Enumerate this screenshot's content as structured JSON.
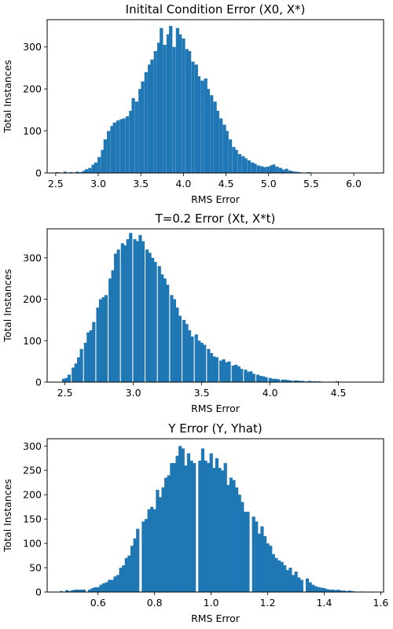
{
  "chart_data": [
    {
      "type": "bar",
      "title": "Initital Condition Error (X0, X*)",
      "xlabel": "RMS Error",
      "ylabel": "Total Instances",
      "xlim": [
        2.4,
        6.35
      ],
      "ylim": [
        0,
        365
      ],
      "xticks": [
        2.5,
        3.0,
        3.5,
        4.0,
        4.5,
        5.0,
        5.5,
        6.0
      ],
      "xtick_labels": [
        "2.5",
        "3.0",
        "3.5",
        "4.0",
        "4.5",
        "5.0",
        "5.5",
        "6.0"
      ],
      "yticks": [
        0,
        100,
        200,
        300
      ],
      "ytick_labels": [
        "0",
        "100",
        "200",
        "300"
      ],
      "bin_width": 0.0366,
      "x": [
        2.52,
        2.57,
        2.61,
        2.64,
        2.68,
        2.72,
        2.75,
        2.79,
        2.83,
        2.86,
        2.9,
        2.94,
        2.97,
        3.01,
        3.05,
        3.08,
        3.12,
        3.16,
        3.19,
        3.23,
        3.27,
        3.3,
        3.34,
        3.38,
        3.41,
        3.45,
        3.49,
        3.52,
        3.56,
        3.6,
        3.63,
        3.67,
        3.71,
        3.74,
        3.78,
        3.82,
        3.85,
        3.89,
        3.93,
        3.96,
        4.0,
        4.04,
        4.07,
        4.11,
        4.15,
        4.18,
        4.22,
        4.26,
        4.29,
        4.33,
        4.37,
        4.4,
        4.44,
        4.48,
        4.51,
        4.55,
        4.59,
        4.62,
        4.66,
        4.7,
        4.73,
        4.77,
        4.81,
        4.84,
        4.88,
        4.92,
        4.95,
        4.99,
        5.03,
        5.06,
        5.1,
        5.14,
        5.17,
        5.21,
        5.25,
        5.28,
        5.32,
        5.36,
        5.39,
        5.43,
        5.47,
        5.5,
        5.54,
        5.58,
        5.61,
        5.65,
        5.69,
        5.72,
        5.76,
        5.8,
        5.83,
        5.87,
        5.91,
        5.94,
        5.98,
        6.02,
        6.05,
        6.09,
        6.13,
        6.17
      ],
      "values": [
        2,
        0,
        3,
        1,
        2,
        0,
        3,
        2,
        5,
        9,
        12,
        20,
        25,
        38,
        55,
        80,
        100,
        112,
        120,
        125,
        128,
        130,
        135,
        148,
        178,
        170,
        200,
        218,
        240,
        258,
        270,
        290,
        310,
        345,
        305,
        330,
        350,
        300,
        345,
        330,
        320,
        295,
        290,
        265,
        258,
        230,
        220,
        225,
        200,
        185,
        170,
        148,
        130,
        115,
        100,
        80,
        62,
        55,
        45,
        40,
        35,
        30,
        25,
        22,
        18,
        16,
        14,
        15,
        18,
        20,
        15,
        12,
        8,
        10,
        6,
        4,
        3,
        2,
        1,
        1,
        2,
        1,
        0,
        1,
        0,
        0,
        1,
        0,
        0,
        0,
        0,
        1,
        0,
        0,
        0,
        0,
        0,
        0,
        0,
        1
      ]
    },
    {
      "type": "bar",
      "title": "T=0.2 Error (Xt, X*t)",
      "xlabel": "RMS Error",
      "ylabel": "Total Instances",
      "xlim": [
        2.37,
        4.83
      ],
      "ylim": [
        0,
        370
      ],
      "xticks": [
        2.5,
        3.0,
        3.5,
        4.0,
        4.5
      ],
      "xtick_labels": [
        "2.5",
        "3.0",
        "3.5",
        "4.0",
        "4.5"
      ],
      "yticks": [
        0,
        100,
        200,
        300
      ],
      "ytick_labels": [
        "0",
        "100",
        "200",
        "300"
      ],
      "bin_width": 0.0225,
      "x": [
        2.49,
        2.51,
        2.53,
        2.56,
        2.58,
        2.6,
        2.62,
        2.65,
        2.67,
        2.69,
        2.71,
        2.74,
        2.76,
        2.78,
        2.8,
        2.83,
        2.85,
        2.87,
        2.89,
        2.92,
        2.94,
        2.96,
        2.98,
        3.01,
        3.03,
        3.05,
        3.07,
        3.1,
        3.12,
        3.14,
        3.16,
        3.19,
        3.21,
        3.23,
        3.25,
        3.28,
        3.3,
        3.32,
        3.34,
        3.37,
        3.39,
        3.41,
        3.43,
        3.46,
        3.48,
        3.5,
        3.52,
        3.55,
        3.57,
        3.59,
        3.61,
        3.64,
        3.66,
        3.68,
        3.7,
        3.73,
        3.75,
        3.77,
        3.79,
        3.82,
        3.84,
        3.86,
        3.88,
        3.91,
        3.93,
        3.95,
        3.97,
        4.0,
        4.02,
        4.04,
        4.06,
        4.09,
        4.11,
        4.13,
        4.15,
        4.18,
        4.2,
        4.22,
        4.24,
        4.27,
        4.29,
        4.31,
        4.33,
        4.36,
        4.38,
        4.4,
        4.42,
        4.45,
        4.47,
        4.49,
        4.51,
        4.54,
        4.56,
        4.58,
        4.6,
        4.63,
        4.65,
        4.67,
        4.7,
        4.72
      ],
      "values": [
        8,
        10,
        18,
        35,
        45,
        60,
        80,
        95,
        120,
        125,
        145,
        180,
        200,
        205,
        210,
        250,
        270,
        310,
        320,
        335,
        330,
        345,
        360,
        345,
        340,
        355,
        340,
        320,
        312,
        300,
        290,
        280,
        260,
        250,
        235,
        210,
        200,
        180,
        160,
        150,
        140,
        125,
        110,
        115,
        100,
        95,
        90,
        80,
        70,
        62,
        60,
        52,
        55,
        48,
        50,
        40,
        42,
        38,
        32,
        30,
        25,
        26,
        20,
        18,
        15,
        14,
        12,
        10,
        8,
        8,
        7,
        6,
        6,
        5,
        4,
        4,
        4,
        3,
        3,
        2,
        3,
        2,
        2,
        2,
        1,
        1,
        1,
        1,
        1,
        2,
        1,
        1,
        1,
        0,
        1,
        1,
        0,
        0,
        1,
        1
      ]
    },
    {
      "type": "bar",
      "title": "Y Error (Y, Yhat)",
      "xlabel": "RMS Error",
      "ylabel": "Total Instances",
      "xlim": [
        0.42,
        1.61
      ],
      "ylim": [
        0,
        315
      ],
      "xticks": [
        0.6,
        0.8,
        1.0,
        1.2,
        1.4,
        1.6
      ],
      "xtick_labels": [
        "0.6",
        "0.8",
        "1.0",
        "1.2",
        "1.4",
        "1.6"
      ],
      "yticks": [
        0,
        50,
        100,
        150,
        200,
        250,
        300
      ],
      "ytick_labels": [
        "0",
        "50",
        "100",
        "150",
        "200",
        "250",
        "300"
      ],
      "bin_width": 0.0109,
      "x": [
        0.47,
        0.48,
        0.49,
        0.5,
        0.51,
        0.52,
        0.53,
        0.54,
        0.55,
        0.57,
        0.58,
        0.59,
        0.6,
        0.61,
        0.62,
        0.63,
        0.64,
        0.65,
        0.66,
        0.67,
        0.68,
        0.69,
        0.7,
        0.71,
        0.72,
        0.73,
        0.74,
        0.76,
        0.77,
        0.78,
        0.79,
        0.8,
        0.81,
        0.82,
        0.83,
        0.84,
        0.85,
        0.86,
        0.87,
        0.88,
        0.89,
        0.9,
        0.91,
        0.92,
        0.93,
        0.94,
        0.96,
        0.97,
        0.98,
        0.99,
        1.0,
        1.01,
        1.02,
        1.03,
        1.04,
        1.05,
        1.06,
        1.07,
        1.08,
        1.09,
        1.1,
        1.11,
        1.12,
        1.13,
        1.15,
        1.16,
        1.17,
        1.18,
        1.19,
        1.2,
        1.21,
        1.22,
        1.23,
        1.24,
        1.25,
        1.26,
        1.27,
        1.28,
        1.29,
        1.3,
        1.31,
        1.32,
        1.34,
        1.35,
        1.36,
        1.37,
        1.38,
        1.39,
        1.4,
        1.41,
        1.42,
        1.43,
        1.44,
        1.45,
        1.46,
        1.47,
        1.48,
        1.49,
        1.5,
        1.51,
        1.53,
        1.54
      ],
      "values": [
        2,
        0,
        4,
        2,
        4,
        5,
        5,
        5,
        5,
        5,
        8,
        10,
        10,
        15,
        18,
        20,
        25,
        25,
        32,
        35,
        50,
        55,
        70,
        75,
        95,
        110,
        130,
        145,
        150,
        170,
        175,
        170,
        210,
        195,
        215,
        235,
        240,
        265,
        265,
        280,
        300,
        295,
        260,
        285,
        270,
        265,
        270,
        295,
        270,
        265,
        285,
        255,
        275,
        255,
        250,
        265,
        220,
        235,
        230,
        215,
        200,
        185,
        165,
        165,
        155,
        145,
        120,
        135,
        115,
        100,
        95,
        78,
        70,
        65,
        62,
        55,
        45,
        50,
        35,
        42,
        30,
        25,
        28,
        20,
        15,
        12,
        10,
        9,
        8,
        6,
        5,
        5,
        4,
        5,
        3,
        3,
        2,
        3,
        2,
        1,
        1,
        1
      ]
    }
  ],
  "colors": {
    "bar": "#1f77b4",
    "axis": "#000000",
    "background": "#ffffff"
  }
}
